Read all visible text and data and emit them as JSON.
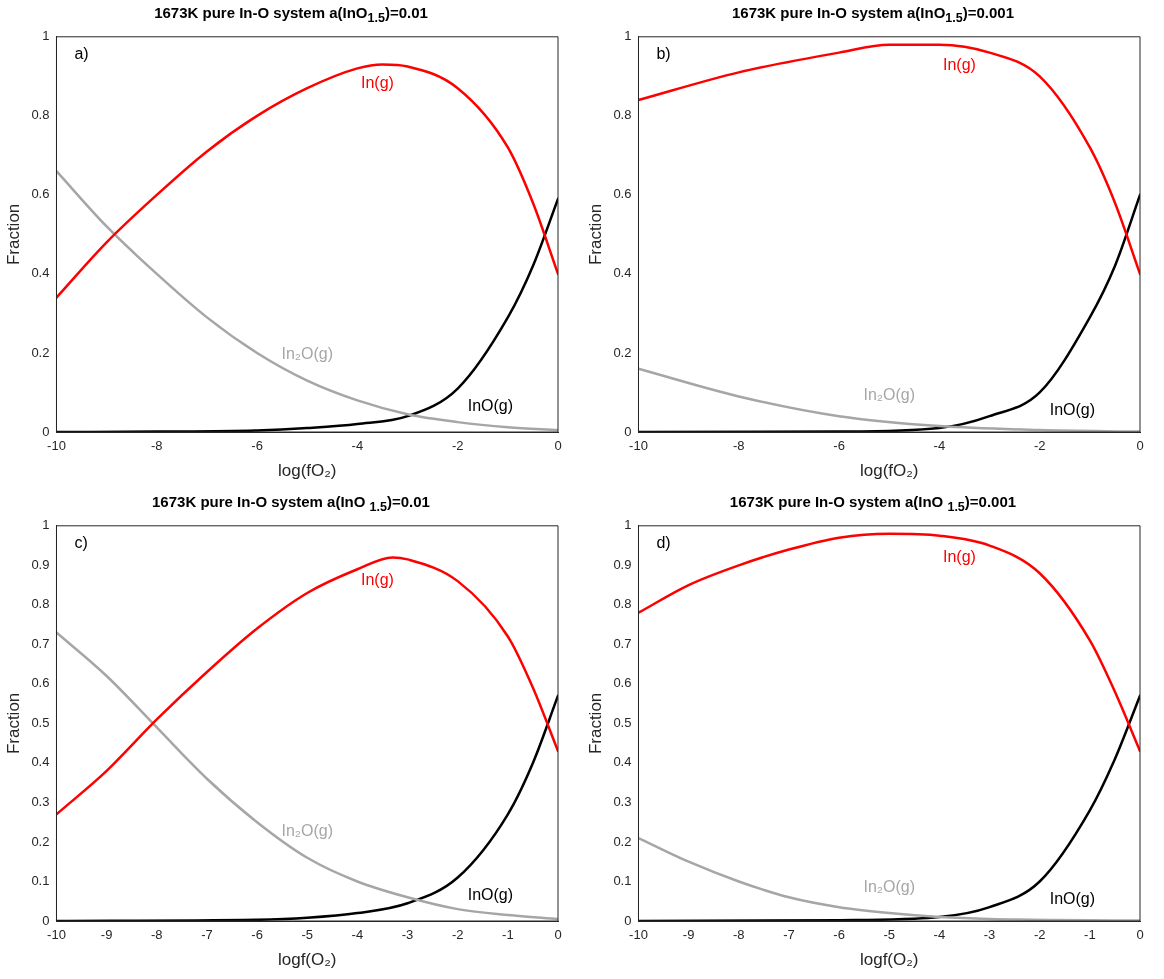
{
  "chart_data": [
    {
      "type": "line",
      "title": "1673K pure In-O system a(InO$_{1.5}$)=0.01",
      "xlabel": "log(fO₂)",
      "ylabel": "Fraction",
      "xlim": [
        -10,
        0
      ],
      "ylim": [
        0,
        1
      ],
      "xticks": [
        -10,
        -8,
        -6,
        -4,
        -2,
        0
      ],
      "yticks": [
        0,
        0.2,
        0.4,
        0.6,
        0.8,
        1
      ],
      "grid": false,
      "legend": false,
      "marker": "none",
      "annotations": [
        "a)"
      ],
      "series": [
        {
          "name": "In(g)",
          "color": "#ff0000",
          "x": [
            -10,
            -9,
            -8,
            -7,
            -6,
            -5,
            -4,
            -3.5,
            -3,
            -2,
            -1,
            -0.5,
            0
          ],
          "values": [
            0.34,
            0.48,
            0.6,
            0.71,
            0.8,
            0.87,
            0.92,
            0.93,
            0.925,
            0.87,
            0.72,
            0.58,
            0.4
          ]
        },
        {
          "name": "In₂O(g)",
          "color": "#a6a6a6",
          "x": [
            -10,
            -9,
            -8,
            -7,
            -6,
            -5,
            -4,
            -3,
            -2,
            -1,
            0
          ],
          "values": [
            0.66,
            0.52,
            0.4,
            0.29,
            0.2,
            0.13,
            0.08,
            0.045,
            0.025,
            0.012,
            0.005
          ]
        },
        {
          "name": "InO(g)",
          "color": "#000000",
          "x": [
            -10,
            -8,
            -6,
            -5,
            -4,
            -3,
            -2,
            -1,
            -0.5,
            0
          ],
          "values": [
            0,
            0.001,
            0.004,
            0.01,
            0.02,
            0.04,
            0.11,
            0.29,
            0.42,
            0.59
          ]
        }
      ]
    },
    {
      "type": "line",
      "title": "1673K pure In-O system a(InO$_{1.5}$)=0.001",
      "xlabel": "log(fO₂)",
      "ylabel": "Fraction",
      "xlim": [
        -10,
        0
      ],
      "ylim": [
        0,
        1
      ],
      "xticks": [
        -10,
        -8,
        -6,
        -4,
        -2,
        0
      ],
      "yticks": [
        0,
        0.2,
        0.4,
        0.6,
        0.8,
        1
      ],
      "grid": false,
      "legend": false,
      "marker": "none",
      "annotations": [
        "b)"
      ],
      "series": [
        {
          "name": "In(g)",
          "color": "#ff0000",
          "x": [
            -10,
            -8,
            -6,
            -5,
            -4,
            -3,
            -2,
            -1,
            -0.5,
            0
          ],
          "values": [
            0.84,
            0.91,
            0.96,
            0.98,
            0.98,
            0.96,
            0.9,
            0.72,
            0.58,
            0.4
          ]
        },
        {
          "name": "In₂O(g)",
          "color": "#a6a6a6",
          "x": [
            -10,
            -8,
            -6,
            -4,
            -2,
            0
          ],
          "values": [
            0.16,
            0.09,
            0.04,
            0.015,
            0.005,
            0.001
          ]
        },
        {
          "name": "InO(g)",
          "color": "#000000",
          "x": [
            -10,
            -6,
            -4,
            -3,
            -2,
            -1,
            -0.5,
            0
          ],
          "values": [
            0,
            0.001,
            0.01,
            0.04,
            0.1,
            0.29,
            0.42,
            0.6
          ]
        }
      ]
    },
    {
      "type": "line",
      "title": "1673K pure In-O system a(InO $_{1.5}$)=0.01",
      "xlabel": "logf(O₂)",
      "ylabel": "Fraction",
      "xlim": [
        -10,
        0
      ],
      "ylim": [
        0,
        1
      ],
      "xticks": [
        -10,
        -9,
        -8,
        -7,
        -6,
        -5,
        -4,
        -3,
        -2,
        -1,
        0
      ],
      "yticks": [
        0,
        0.1,
        0.2,
        0.3,
        0.4,
        0.5,
        0.6,
        0.7,
        0.8,
        0.9,
        1
      ],
      "grid": false,
      "legend": false,
      "marker": "none",
      "annotations": [
        "c)"
      ],
      "series": [
        {
          "name": "In(g)",
          "color": "#ff0000",
          "x": [
            -10,
            -9,
            -8,
            -7,
            -6,
            -5,
            -4,
            -3.3,
            -3,
            -2,
            -1,
            -0.5,
            0
          ],
          "values": [
            0.27,
            0.38,
            0.51,
            0.63,
            0.74,
            0.83,
            0.89,
            0.92,
            0.915,
            0.86,
            0.72,
            0.59,
            0.43
          ]
        },
        {
          "name": "In₂O(g)",
          "color": "#a6a6a6",
          "x": [
            -10,
            -9,
            -8,
            -7,
            -6,
            -5,
            -4,
            -3,
            -2,
            -1,
            0
          ],
          "values": [
            0.73,
            0.62,
            0.49,
            0.36,
            0.25,
            0.16,
            0.1,
            0.06,
            0.03,
            0.015,
            0.005
          ]
        },
        {
          "name": "InO(g)",
          "color": "#000000",
          "x": [
            -10,
            -6,
            -5,
            -4,
            -3,
            -2,
            -1,
            -0.5,
            0
          ],
          "values": [
            0,
            0.003,
            0.008,
            0.02,
            0.045,
            0.11,
            0.27,
            0.4,
            0.57
          ]
        }
      ]
    },
    {
      "type": "line",
      "title": "1673K pure In-O system a(InO $_{1.5}$)=0.001",
      "xlabel": "logf(O₂)",
      "ylabel": "Fraction",
      "xlim": [
        -10,
        0
      ],
      "ylim": [
        0,
        1
      ],
      "xticks": [
        -10,
        -9,
        -8,
        -7,
        -6,
        -5,
        -4,
        -3,
        -2,
        -1,
        0
      ],
      "yticks": [
        0,
        0.1,
        0.2,
        0.3,
        0.4,
        0.5,
        0.6,
        0.7,
        0.8,
        0.9,
        1
      ],
      "grid": false,
      "legend": false,
      "marker": "none",
      "annotations": [
        "d)"
      ],
      "series": [
        {
          "name": "In(g)",
          "color": "#ff0000",
          "x": [
            -10,
            -9,
            -8,
            -7,
            -6,
            -5,
            -4,
            -3,
            -2,
            -1,
            -0.5,
            0
          ],
          "values": [
            0.78,
            0.85,
            0.9,
            0.94,
            0.97,
            0.98,
            0.975,
            0.95,
            0.88,
            0.71,
            0.58,
            0.43
          ]
        },
        {
          "name": "In₂O(g)",
          "color": "#a6a6a6",
          "x": [
            -10,
            -9,
            -8,
            -7,
            -6,
            -5,
            -4,
            -3,
            0
          ],
          "values": [
            0.21,
            0.15,
            0.1,
            0.06,
            0.035,
            0.02,
            0.01,
            0.005,
            0.001
          ]
        },
        {
          "name": "InO(g)",
          "color": "#000000",
          "x": [
            -10,
            -6,
            -4,
            -3,
            -2,
            -1,
            -0.5,
            0
          ],
          "values": [
            0,
            0.002,
            0.01,
            0.035,
            0.1,
            0.28,
            0.41,
            0.57
          ]
        }
      ]
    }
  ]
}
